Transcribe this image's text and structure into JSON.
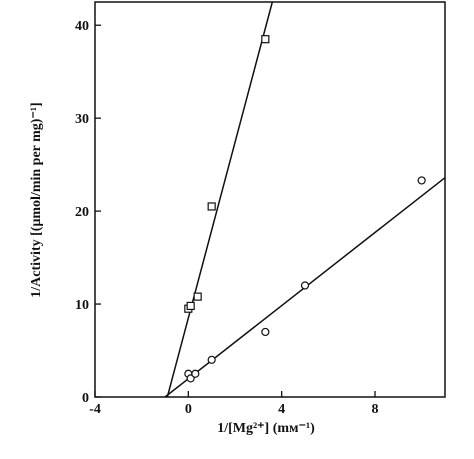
{
  "chart_data": {
    "type": "scatter",
    "x_label": "1/[Mg²⁺] (mᴍ⁻¹)",
    "y_label": "1/Activity [(μmol/min per mg)⁻¹]",
    "xlim": [
      -4,
      11
    ],
    "ylim": [
      0,
      42.5
    ],
    "xticks": [
      -4,
      0,
      4,
      8
    ],
    "yticks": [
      0,
      10,
      20,
      30,
      40
    ],
    "color": "#111",
    "series": [
      {
        "marker": "square",
        "x": [
          0,
          0.1,
          0.4,
          1.0,
          3.3
        ],
        "values": [
          9.5,
          9.8,
          10.8,
          20.5,
          38.5
        ]
      },
      {
        "marker": "circle",
        "x": [
          0,
          0.1,
          0.3,
          1.0,
          3.3,
          5.0,
          10.0
        ],
        "values": [
          2.5,
          2.0,
          2.5,
          4.0,
          7.0,
          12.0,
          23.3
        ]
      }
    ],
    "fit_lines": [
      {
        "x": [
          -0.9,
          3.6
        ],
        "values": [
          0,
          42.5
        ]
      },
      {
        "x": [
          -1.0,
          11
        ],
        "values": [
          0,
          23.6
        ]
      }
    ]
  }
}
